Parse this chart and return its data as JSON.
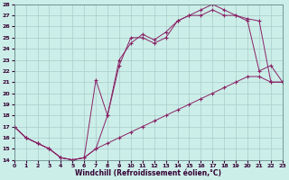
{
  "bg_color": "#cceee8",
  "line_color": "#882266",
  "grid_color": "#aacccc",
  "xmin": 0,
  "xmax": 23,
  "ymin": 14,
  "ymax": 28,
  "xticks": [
    0,
    1,
    2,
    3,
    4,
    5,
    6,
    7,
    8,
    9,
    10,
    11,
    12,
    13,
    14,
    15,
    16,
    17,
    18,
    19,
    20,
    21,
    22,
    23
  ],
  "yticks": [
    14,
    15,
    16,
    17,
    18,
    19,
    20,
    21,
    22,
    23,
    24,
    25,
    26,
    27,
    28
  ],
  "xlabel": "Windchill (Refroidissement éolien,°C)",
  "curve1_x": [
    0,
    1,
    2,
    3,
    4,
    5,
    6,
    7,
    8,
    9,
    10,
    11,
    12,
    13,
    14,
    15,
    16,
    17,
    18,
    19,
    20,
    21,
    22,
    23
  ],
  "curve1_y": [
    17.0,
    16.0,
    15.5,
    15.0,
    14.2,
    14.0,
    14.2,
    15.0,
    15.5,
    16.0,
    16.5,
    17.0,
    17.5,
    18.0,
    18.5,
    19.0,
    19.5,
    20.0,
    20.5,
    21.0,
    21.5,
    21.5,
    21.0,
    21.0
  ],
  "curve2_x": [
    0,
    1,
    2,
    3,
    4,
    5,
    6,
    7,
    8,
    9,
    10,
    11,
    12,
    13,
    14,
    15,
    16,
    17,
    18,
    19,
    20,
    21,
    22,
    23
  ],
  "curve2_y": [
    17.0,
    16.0,
    15.5,
    15.0,
    14.2,
    14.0,
    14.2,
    21.2,
    18.0,
    22.5,
    25.0,
    25.0,
    24.5,
    25.0,
    26.5,
    27.0,
    27.5,
    28.0,
    27.5,
    27.0,
    26.5,
    22.0,
    22.5,
    21.0
  ],
  "curve3_x": [
    0,
    1,
    2,
    3,
    4,
    5,
    6,
    7,
    8,
    9,
    10,
    11,
    12,
    13,
    14,
    15,
    16,
    17,
    18,
    19,
    20,
    21,
    22,
    23
  ],
  "curve3_y": [
    17.0,
    16.0,
    15.5,
    15.0,
    14.2,
    14.0,
    14.2,
    15.0,
    18.0,
    23.0,
    24.5,
    25.3,
    24.8,
    25.5,
    26.5,
    27.0,
    27.0,
    27.5,
    27.0,
    27.0,
    26.7,
    26.5,
    21.0,
    21.0
  ]
}
